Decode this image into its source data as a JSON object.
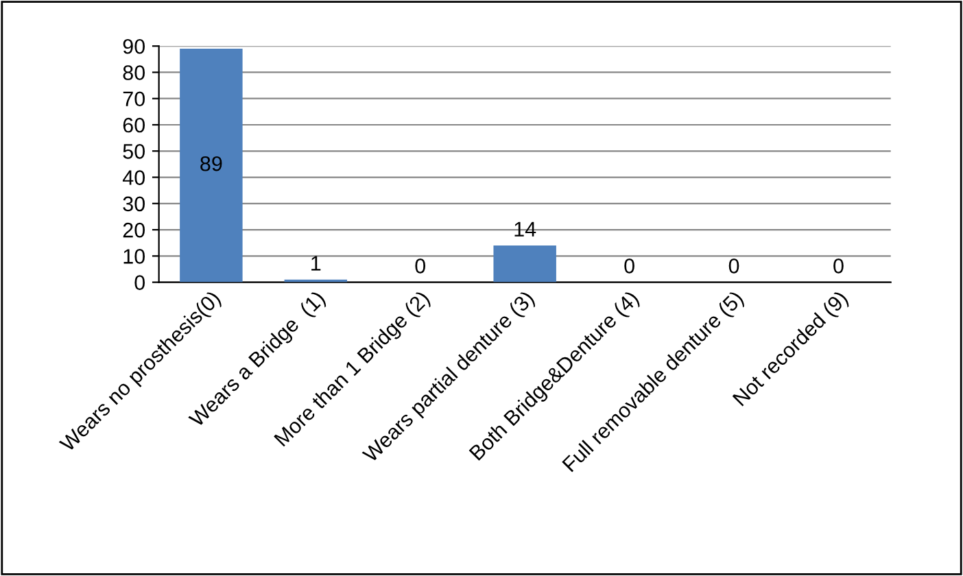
{
  "chart_data": {
    "type": "bar",
    "categories": [
      "Wears no prosthesis(0)",
      "Wears a Bridge  (1)",
      "More than 1 Bridge (2)",
      "Wears partial denture (3)",
      "Both Bridge&Denture (4)",
      "Full removable denture (5)",
      "Not recorded (9)"
    ],
    "values": [
      89,
      1,
      0,
      14,
      0,
      0,
      0
    ],
    "color": "#4f81bd",
    "ylim": [
      0,
      90
    ],
    "yticks": [
      0,
      10,
      20,
      30,
      40,
      50,
      60,
      70,
      80,
      90
    ],
    "grid": "y",
    "data_labels": true
  }
}
